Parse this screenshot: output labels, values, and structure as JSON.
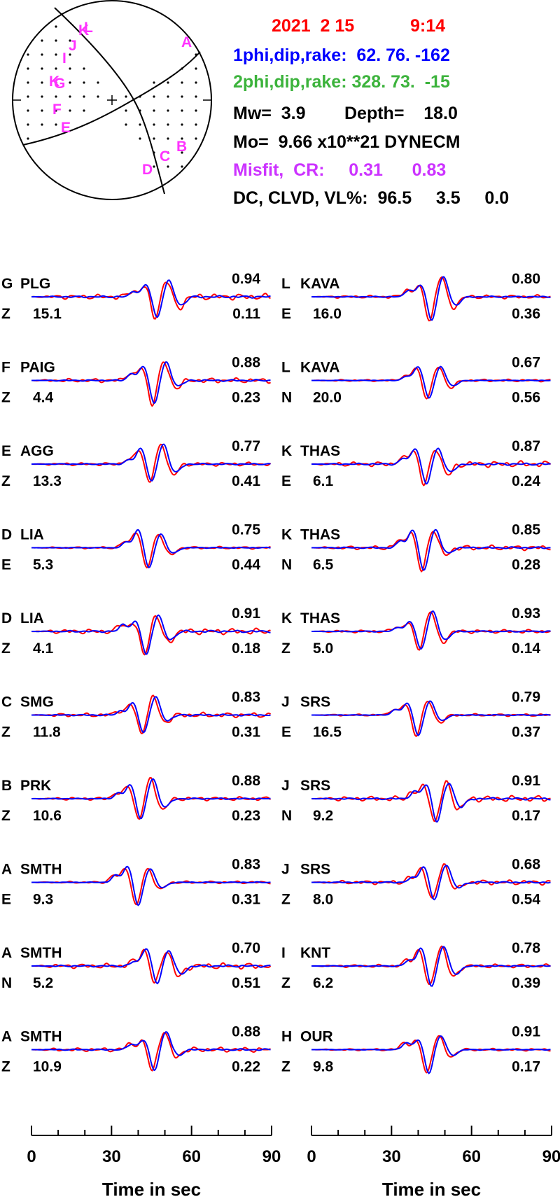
{
  "header": {
    "date": "2021  2 15",
    "time": "9:14",
    "plane1": "1phi,dip,rake:  62. 76. -162",
    "plane2": "2phi,dip,rake: 328. 73.  -15",
    "mw": "Mw=  3.9",
    "depth": "Depth=    18.0",
    "mo": "Mo=  9.66 x10**21 DYNECM",
    "misfit": "Misfit,  CR:     0.31      0.83",
    "dc": "DC, CLVD, VL%:  96.5     3.5     0.0"
  },
  "colors": {
    "date": "#ff0000",
    "plane1": "#0000ff",
    "plane2": "#3cb33c",
    "misfit": "#cc33ff",
    "station_letters": "#ff33ff",
    "observed": "#ff0000",
    "synthetic": "#0000ff"
  },
  "beachball": {
    "station_letters": [
      "A",
      "B",
      "C",
      "D",
      "E",
      "F",
      "G",
      "I",
      "J",
      "K",
      "L"
    ]
  },
  "chart_data": {
    "type": "line",
    "x_unit": "sec",
    "xlim": [
      0,
      90
    ],
    "xticks": [
      "0",
      "30",
      "60",
      "90"
    ],
    "xlabel": "Time  in sec",
    "series_legend": {
      "observed": "red",
      "synthetic": "blue"
    },
    "columns": [
      {
        "traces": [
          {
            "id": "G",
            "station": "PLG",
            "comp": "Z",
            "shift": "15.1",
            "cc": "0.94",
            "misfit": "0.11"
          },
          {
            "id": "F",
            "station": "PAIG",
            "comp": "Z",
            "shift": "4.4",
            "cc": "0.88",
            "misfit": "0.23"
          },
          {
            "id": "E",
            "station": "AGG",
            "comp": "Z",
            "shift": "13.3",
            "cc": "0.77",
            "misfit": "0.41"
          },
          {
            "id": "D",
            "station": "LIA",
            "comp": "E",
            "shift": "5.3",
            "cc": "0.75",
            "misfit": "0.44"
          },
          {
            "id": "D",
            "station": "LIA",
            "comp": "Z",
            "shift": "4.1",
            "cc": "0.91",
            "misfit": "0.18"
          },
          {
            "id": "C",
            "station": "SMG",
            "comp": "Z",
            "shift": "11.8",
            "cc": "0.83",
            "misfit": "0.31"
          },
          {
            "id": "B",
            "station": "PRK",
            "comp": "Z",
            "shift": "10.6",
            "cc": "0.88",
            "misfit": "0.23"
          },
          {
            "id": "A",
            "station": "SMTH",
            "comp": "E",
            "shift": "9.3",
            "cc": "0.83",
            "misfit": "0.31"
          },
          {
            "id": "A",
            "station": "SMTH",
            "comp": "N",
            "shift": "5.2",
            "cc": "0.70",
            "misfit": "0.51"
          },
          {
            "id": "A",
            "station": "SMTH",
            "comp": "Z",
            "shift": "10.9",
            "cc": "0.88",
            "misfit": "0.22"
          }
        ]
      },
      {
        "traces": [
          {
            "id": "L",
            "station": "KAVA",
            "comp": "E",
            "shift": "16.0",
            "cc": "0.80",
            "misfit": "0.36"
          },
          {
            "id": "L",
            "station": "KAVA",
            "comp": "N",
            "shift": "20.0",
            "cc": "0.67",
            "misfit": "0.56"
          },
          {
            "id": "K",
            "station": "THAS",
            "comp": "E",
            "shift": "6.1",
            "cc": "0.87",
            "misfit": "0.24"
          },
          {
            "id": "K",
            "station": "THAS",
            "comp": "N",
            "shift": "6.5",
            "cc": "0.85",
            "misfit": "0.28"
          },
          {
            "id": "K",
            "station": "THAS",
            "comp": "Z",
            "shift": "5.0",
            "cc": "0.93",
            "misfit": "0.14"
          },
          {
            "id": "J",
            "station": "SRS",
            "comp": "E",
            "shift": "16.5",
            "cc": "0.79",
            "misfit": "0.37"
          },
          {
            "id": "J",
            "station": "SRS",
            "comp": "N",
            "shift": "9.2",
            "cc": "0.91",
            "misfit": "0.17"
          },
          {
            "id": "J",
            "station": "SRS",
            "comp": "Z",
            "shift": "8.0",
            "cc": "0.68",
            "misfit": "0.54"
          },
          {
            "id": "I",
            "station": "KNT",
            "comp": "Z",
            "shift": "6.2",
            "cc": "0.78",
            "misfit": "0.39"
          },
          {
            "id": "H",
            "station": "OUR",
            "comp": "Z",
            "shift": "9.8",
            "cc": "0.91",
            "misfit": "0.17"
          }
        ]
      }
    ]
  }
}
